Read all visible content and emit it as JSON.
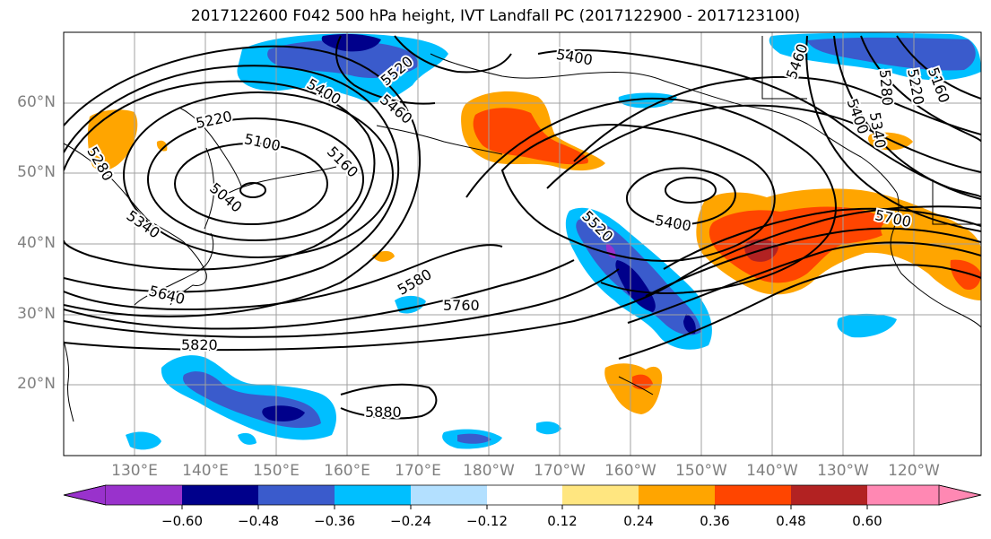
{
  "title": "2017122600 F042 500 hPa height, IVT Landfall PC (2017122900 - 2017123100)",
  "lat_labels": [
    "60°N",
    "50°N",
    "40°N",
    "30°N",
    "20°N"
  ],
  "lon_labels": [
    "130°E",
    "140°E",
    "150°E",
    "160°E",
    "170°E",
    "180°W",
    "170°W",
    "160°W",
    "150°W",
    "140°W",
    "130°W",
    "120°W"
  ],
  "contour_labels": [
    "5220",
    "5100",
    "5520",
    "5400",
    "5460",
    "5160",
    "5400",
    "5280",
    "5040",
    "5340",
    "5640",
    "5820",
    "5580",
    "5760",
    "5880",
    "5400",
    "5520",
    "5700",
    "5400",
    "5340",
    "5220",
    "5160",
    "5280",
    "5460"
  ],
  "colorbar": {
    "ticks": [
      "−0.60",
      "−0.48",
      "−0.36",
      "−0.24",
      "−0.12",
      "0.12",
      "0.24",
      "0.36",
      "0.48",
      "0.60"
    ],
    "colors": [
      "#9932cc",
      "#00008b",
      "#3a5bcc",
      "#00bfff",
      "#b3e0ff",
      "#ffffff",
      "#ffe680",
      "#ffa500",
      "#ff4500",
      "#b22222",
      "#ff88b3"
    ]
  },
  "colors": {
    "neg_strong": "#3a5bcc",
    "neg_mid": "#00bfff",
    "neg_deep": "#00008b",
    "neg_purple": "#9932cc",
    "pos_light": "#ffe680",
    "pos_mid": "#ffa500",
    "pos_strong": "#ff4500",
    "pos_deep": "#b22222"
  }
}
